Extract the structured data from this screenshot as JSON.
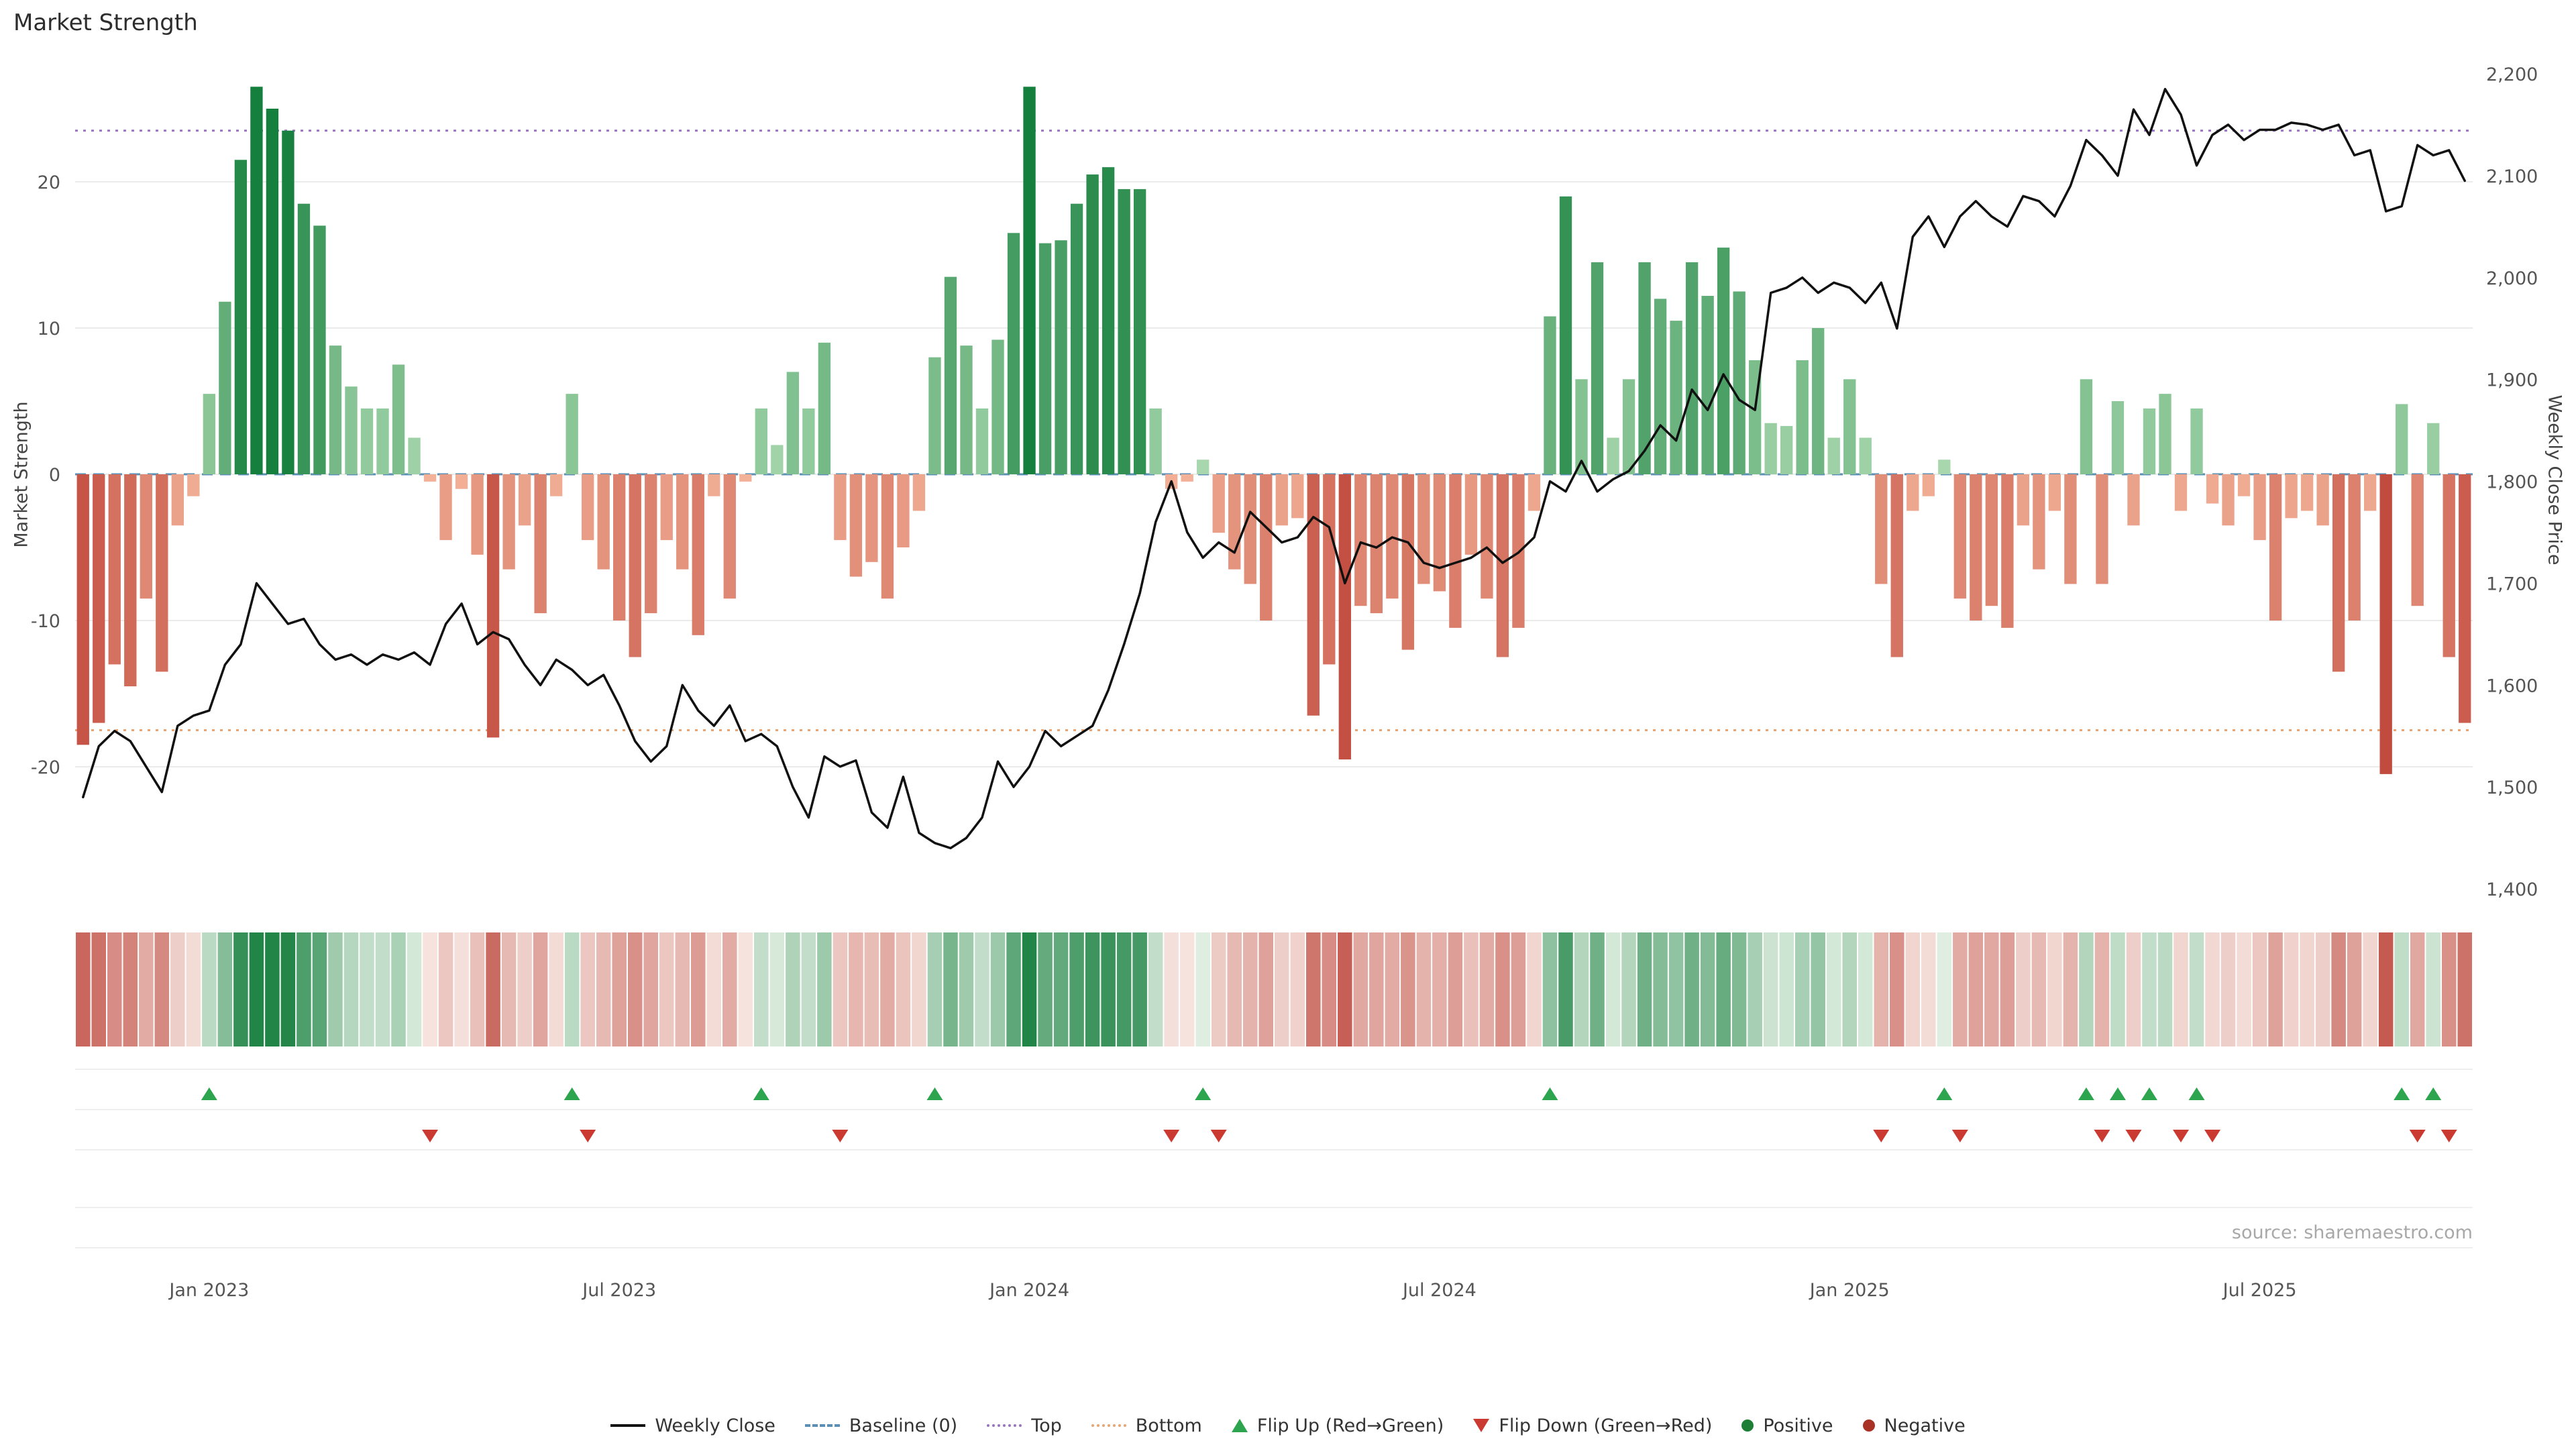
{
  "title": "Market Strength",
  "source": "source: sharemaestro.com",
  "axes": {
    "left_label": "Market Strength",
    "right_label": "Weekly Close Price",
    "left_ticks": [
      20,
      10,
      0,
      -10,
      -20
    ],
    "right_ticks": [
      "2,200",
      "2,100",
      "2,000",
      "1,900",
      "1,800",
      "1,700",
      "1,600",
      "1,500",
      "1,400"
    ]
  },
  "colors": {
    "positive_dark": "#157f3d",
    "positive_light": "#aedbb2",
    "negative_dark": "#b8392e",
    "negative_light": "#f4b49a",
    "heat_positive_light": "#e8f3e8",
    "heat_negative_light": "#f7e6e1",
    "price_line": "#111111",
    "baseline": "#5b8fb5",
    "top_line": "#9b74c0",
    "bottom_line": "#e8a471",
    "grid": "#ebebeb",
    "tick_text": "#555555",
    "flip_up": "#2da44e",
    "flip_down": "#cb3a31"
  },
  "legend": {
    "items": [
      {
        "label": "Weekly Close",
        "glyph": "line"
      },
      {
        "label": "Baseline (0)",
        "glyph": "dashed-blue"
      },
      {
        "label": "Top",
        "glyph": "dotted-purple"
      },
      {
        "label": "Bottom",
        "glyph": "dotted-orange"
      },
      {
        "label": "Flip Up (Red→Green)",
        "glyph": "triangle-up-green"
      },
      {
        "label": "Flip Down (Green→Red)",
        "glyph": "triangle-down-red"
      },
      {
        "label": "Positive",
        "glyph": "circle-green"
      },
      {
        "label": "Negative",
        "glyph": "circle-red"
      }
    ]
  },
  "chart_data": {
    "type": "bar",
    "subtype": "weekly market-strength bars (left axis) + weekly close price line (right axis) + heatmap strip + flip markers",
    "title": "Market Strength",
    "xlabel": "",
    "ylabel_left": "Market Strength",
    "ylabel_right": "Weekly Close Price",
    "left_ylim": [
      -29,
      29
    ],
    "right_ylim": [
      1400,
      2200
    ],
    "x_tick_positions": [
      {
        "label": "Jan 2023",
        "index": 8
      },
      {
        "label": "Jul 2023",
        "index": 34
      },
      {
        "label": "Jan 2024",
        "index": 60
      },
      {
        "label": "Jul 2024",
        "index": 86
      },
      {
        "label": "Jan 2025",
        "index": 112
      },
      {
        "label": "Jul 2025",
        "index": 138
      }
    ],
    "reference_lines": [
      {
        "name": "Baseline (0)",
        "axis": "left",
        "value": 0
      },
      {
        "name": "Top",
        "axis": "left",
        "value": 23.5
      },
      {
        "name": "Bottom",
        "axis": "left",
        "value": -17.5
      }
    ],
    "series": [
      {
        "name": "Market Strength",
        "type": "bar",
        "axis": "left",
        "values": [
          -18.5,
          -17,
          -13,
          -14.5,
          -8.5,
          -13.5,
          -3.5,
          -1.5,
          5.5,
          11.8,
          21.5,
          26.5,
          25,
          23.5,
          18.5,
          17,
          8.8,
          6,
          4.5,
          4.5,
          7.5,
          2.5,
          -0.5,
          -4.5,
          -1,
          -5.5,
          -18,
          -6.5,
          -3.5,
          -9.5,
          -1.5,
          5.5,
          -4.5,
          -6.5,
          -10,
          -12.5,
          -9.5,
          -4.5,
          -6.5,
          -11,
          -1.5,
          -8.5,
          -0.5,
          4.5,
          2,
          7,
          4.5,
          9,
          -4.5,
          -7,
          -6,
          -8.5,
          -5,
          -2.5,
          8,
          13.5,
          8.8,
          4.5,
          9.2,
          16.5,
          26.5,
          15.8,
          16,
          18.5,
          20.5,
          21,
          19.5,
          19.5,
          4.5,
          -1,
          -0.5,
          1,
          -4,
          -6.5,
          -7.5,
          -10,
          -3.5,
          -3,
          -16.5,
          -13,
          -19.5,
          -9,
          -9.5,
          -8.5,
          -12,
          -7.5,
          -8,
          -10.5,
          -5.5,
          -8.5,
          -12.5,
          -10.5,
          -2.5,
          10.8,
          19,
          6.5,
          14.5,
          2.5,
          6.5,
          14.5,
          12,
          10.5,
          14.5,
          12.2,
          15.5,
          12.5,
          7.8,
          3.5,
          3.3,
          7.8,
          10,
          2.5,
          6.5,
          2.5,
          -7.5,
          -12.5,
          -2.5,
          -1.5,
          1,
          -8.5,
          -10,
          -9,
          -10.5,
          -3.5,
          -6.5,
          -2.5,
          -7.5,
          6.5,
          -7.5,
          5,
          -3.5,
          4.5,
          5.5,
          -2.5,
          4.5,
          -2,
          -3.5,
          -1.5,
          -4.5,
          -10,
          -3,
          -2.5,
          -3.5,
          -13.5,
          -10,
          -2.5,
          -20.5,
          4.8,
          -9,
          3.5,
          -12.5,
          -17
        ]
      },
      {
        "name": "Weekly Close",
        "type": "line",
        "axis": "right",
        "values": [
          1490,
          1540,
          1555,
          1545,
          1520,
          1495,
          1560,
          1570,
          1575,
          1620,
          1640,
          1700,
          1680,
          1660,
          1665,
          1640,
          1625,
          1630,
          1620,
          1630,
          1625,
          1632,
          1620,
          1660,
          1680,
          1640,
          1652,
          1645,
          1620,
          1600,
          1625,
          1615,
          1600,
          1610,
          1580,
          1545,
          1525,
          1540,
          1600,
          1575,
          1560,
          1580,
          1545,
          1552,
          1540,
          1500,
          1470,
          1530,
          1520,
          1526,
          1475,
          1460,
          1510,
          1455,
          1445,
          1440,
          1450,
          1470,
          1525,
          1500,
          1520,
          1555,
          1540,
          1550,
          1560,
          1595,
          1640,
          1690,
          1760,
          1800,
          1750,
          1725,
          1740,
          1730,
          1770,
          1755,
          1740,
          1745,
          1765,
          1755,
          1700,
          1740,
          1735,
          1745,
          1740,
          1720,
          1715,
          1720,
          1725,
          1735,
          1720,
          1730,
          1745,
          1800,
          1790,
          1820,
          1790,
          1802,
          1810,
          1830,
          1855,
          1840,
          1890,
          1870,
          1905,
          1880,
          1870,
          1985,
          1990,
          2000,
          1985,
          1995,
          1990,
          1975,
          1995,
          1950,
          2040,
          2060,
          2030,
          2060,
          2075,
          2060,
          2050,
          2080,
          2075,
          2060,
          2090,
          2135,
          2120,
          2100,
          2165,
          2140,
          2185,
          2160,
          2110,
          2140,
          2150,
          2135,
          2145,
          2145,
          2152,
          2150,
          2145,
          2150,
          2120,
          2125,
          2065,
          2070,
          2130,
          2120,
          2125,
          2095
        ]
      }
    ],
    "heatmap": "mirror of Market Strength bar values rendered as a color strip",
    "flip_up_indices": [
      8,
      31,
      43,
      54,
      71,
      93,
      118,
      127,
      129,
      131,
      134,
      147,
      149
    ],
    "flip_down_indices": [
      22,
      32,
      48,
      69,
      72,
      114,
      119,
      128,
      130,
      133,
      135,
      148,
      150
    ]
  }
}
